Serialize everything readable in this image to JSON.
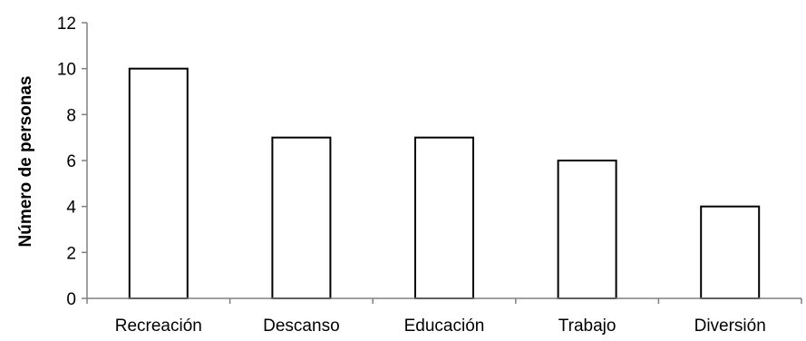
{
  "chart_data": {
    "type": "bar",
    "categories": [
      "Recreación",
      "Descanso",
      "Educación",
      "Trabajo",
      "Diversión"
    ],
    "values": [
      10,
      7,
      7,
      6,
      4
    ],
    "title": "",
    "xlabel": "",
    "ylabel": "Número de personas",
    "ylim": [
      0,
      12
    ],
    "yticks": [
      0,
      2,
      4,
      6,
      8,
      10,
      12
    ],
    "grid": false,
    "legend": "none",
    "colors": {
      "bar_fill": "#ffffff",
      "bar_stroke": "#000000",
      "axis": "#808080"
    }
  }
}
